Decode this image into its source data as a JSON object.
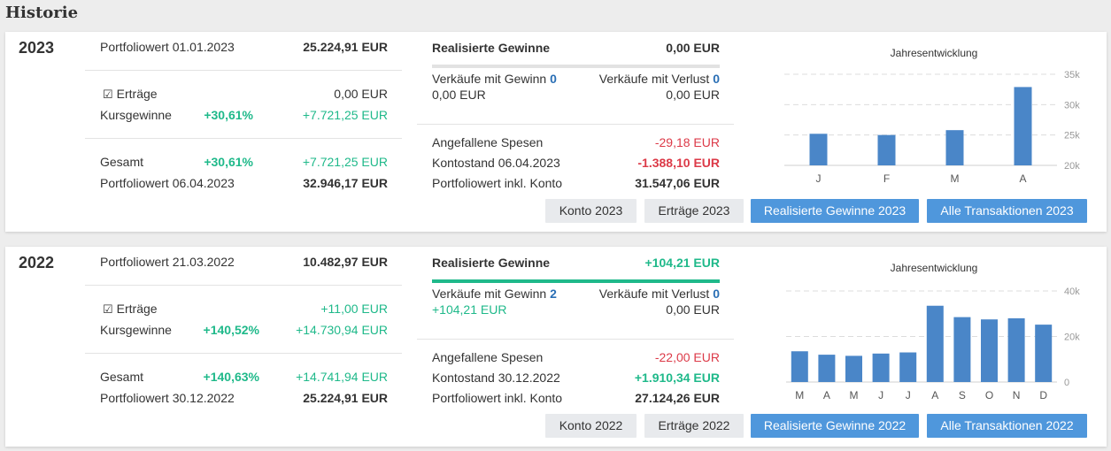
{
  "page": {
    "title": "Historie"
  },
  "colors": {
    "positive": "#1fb98a",
    "negative": "#dc3a48",
    "bar": "#4a86c8",
    "primary_button": "#4f97dc"
  },
  "cards": [
    {
      "year": "2023",
      "portfolio_start_label": "Portfoliowert 01.01.2023",
      "portfolio_start_value": "25.224,91 EUR",
      "ertraege_label": "Erträge",
      "ertraege_value": "0,00 EUR",
      "kursgewinne_label": "Kursgewinne",
      "kursgewinne_pct": "+30,61%",
      "kursgewinne_value": "+7.721,25 EUR",
      "gesamt_label": "Gesamt",
      "gesamt_pct": "+30,61%",
      "gesamt_value": "+7.721,25 EUR",
      "portfolio_end_label": "Portfoliowert 06.04.2023",
      "portfolio_end_value": "32.946,17 EUR",
      "realized_label": "Realisierte Gewinne",
      "realized_value": "0,00 EUR",
      "sales_gain_label": "Verkäufe mit Gewinn",
      "sales_gain_count": "0",
      "sales_gain_value": "0,00 EUR",
      "sales_loss_label": "Verkäufe mit Verlust",
      "sales_loss_count": "0",
      "sales_loss_value": "0,00 EUR",
      "fees_label": "Angefallene Spesen",
      "fees_value": "-29,18 EUR",
      "account_label": "Kontostand 06.04.2023",
      "account_value": "-1.388,10 EUR",
      "portfolio_incl_label": "Portfoliowert inkl. Konto",
      "portfolio_incl_value": "31.547,06 EUR",
      "buttons": [
        "Konto 2023",
        "Erträge 2023",
        "Realisierte Gewinne 2023",
        "Alle Transaktionen 2023"
      ]
    },
    {
      "year": "2022",
      "portfolio_start_label": "Portfoliowert 21.03.2022",
      "portfolio_start_value": "10.482,97 EUR",
      "ertraege_label": "Erträge",
      "ertraege_value": "+11,00 EUR",
      "kursgewinne_label": "Kursgewinne",
      "kursgewinne_pct": "+140,52%",
      "kursgewinne_value": "+14.730,94 EUR",
      "gesamt_label": "Gesamt",
      "gesamt_pct": "+140,63%",
      "gesamt_value": "+14.741,94 EUR",
      "portfolio_end_label": "Portfoliowert 30.12.2022",
      "portfolio_end_value": "25.224,91 EUR",
      "realized_label": "Realisierte Gewinne",
      "realized_value": "+104,21 EUR",
      "sales_gain_label": "Verkäufe mit Gewinn",
      "sales_gain_count": "2",
      "sales_gain_value": "+104,21 EUR",
      "sales_loss_label": "Verkäufe mit Verlust",
      "sales_loss_count": "0",
      "sales_loss_value": "0,00 EUR",
      "fees_label": "Angefallene Spesen",
      "fees_value": "-22,00 EUR",
      "account_label": "Kontostand 30.12.2022",
      "account_value": "+1.910,34 EUR",
      "portfolio_incl_label": "Portfoliowert inkl. Konto",
      "portfolio_incl_value": "27.124,26 EUR",
      "buttons": [
        "Konto 2022",
        "Erträge 2022",
        "Realisierte Gewinne 2022",
        "Alle Transaktionen 2022"
      ]
    }
  ],
  "chart_data": [
    {
      "type": "bar",
      "title": "Jahresentwicklung",
      "categories": [
        "J",
        "F",
        "M",
        "A"
      ],
      "values": [
        25200,
        25000,
        25800,
        32900
      ],
      "ylim": [
        20000,
        35000
      ],
      "yticks": [
        20000,
        25000,
        30000,
        35000
      ],
      "ytick_labels": [
        "20k",
        "25k",
        "30k",
        "35k"
      ],
      "grid": true,
      "y_axis_position": "right"
    },
    {
      "type": "bar",
      "title": "Jahresentwicklung",
      "categories": [
        "M",
        "A",
        "M",
        "J",
        "J",
        "A",
        "S",
        "O",
        "N",
        "D"
      ],
      "values": [
        13500,
        12000,
        11500,
        12500,
        13000,
        33500,
        28500,
        27500,
        28000,
        25200
      ],
      "ylim": [
        0,
        40000
      ],
      "yticks": [
        0,
        20000,
        40000
      ],
      "ytick_labels": [
        "0",
        "20k",
        "40k"
      ],
      "grid": true,
      "y_axis_position": "right"
    }
  ]
}
